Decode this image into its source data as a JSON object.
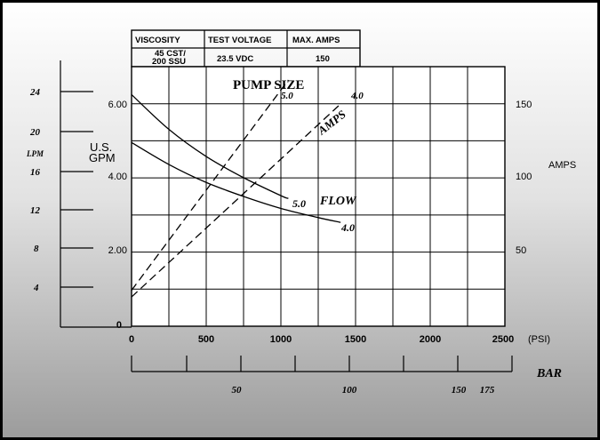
{
  "table": {
    "headers": [
      "VISCOSITY",
      "TEST VOLTAGE",
      "MAX. AMPS"
    ],
    "row_line1": [
      "45  CST/",
      "23.5  VDC",
      "150"
    ],
    "row_line2": [
      "200  SSU",
      "",
      ""
    ]
  },
  "chart_data": {
    "type": "line",
    "x_axis": {
      "label": "(PSI)",
      "ticks": [
        0,
        500,
        1000,
        1500,
        2000,
        2500
      ],
      "range": [
        0,
        2500
      ]
    },
    "bar_axis": {
      "label": "BAR",
      "ticks": [
        50,
        100,
        150,
        175
      ]
    },
    "gpm_axis": {
      "label_line1": "U.S.",
      "label_line2": "GPM",
      "ticks": [
        "6.00",
        "4.00",
        "2.00",
        "0"
      ],
      "range": [
        0,
        6.5
      ]
    },
    "lpm_axis": {
      "label": "LPM",
      "ticks": [
        24,
        20,
        16,
        12,
        8,
        4
      ]
    },
    "amps_axis": {
      "label": "AMPS",
      "ticks": [
        150,
        100,
        50
      ],
      "range": [
        0,
        195
      ]
    },
    "annotations": {
      "pump_size": "PUMP  SIZE",
      "flow": "FLOW",
      "amps": "AMPS"
    },
    "flow_series": [
      {
        "name": "5.0",
        "x": [
          0,
          250,
          500,
          750,
          1000,
          1050
        ],
        "y": [
          5.8,
          4.93,
          4.25,
          3.72,
          3.27,
          3.2
        ]
      },
      {
        "name": "4.0",
        "x": [
          0,
          250,
          500,
          750,
          1000,
          1250,
          1400
        ],
        "y": [
          4.6,
          4.05,
          3.6,
          3.25,
          2.95,
          2.72,
          2.6
        ]
      }
    ],
    "amps_series": [
      {
        "name": "5.0",
        "x": [
          0,
          1050
        ],
        "y": [
          27,
          185
        ]
      },
      {
        "name": "4.0",
        "x": [
          0,
          1400
        ],
        "y": [
          22,
          167
        ]
      }
    ]
  }
}
